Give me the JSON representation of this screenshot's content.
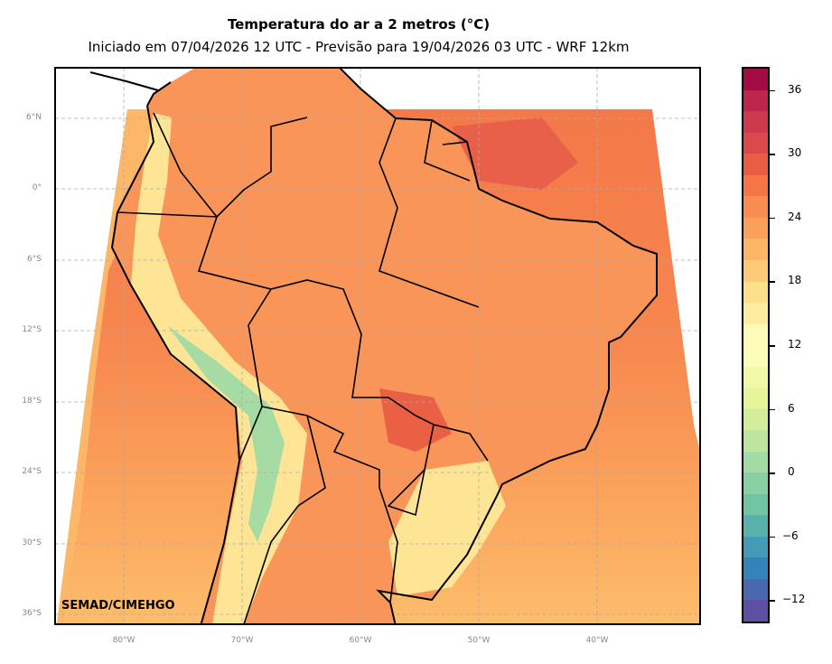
{
  "header": {
    "title": "Temperatura do ar a 2 metros (°C)",
    "subtitle": "Iniciado em 07/04/2026 12 UTC - Previsão para 19/04/2026 03 UTC - WRF 12km"
  },
  "map": {
    "credit": "SEMAD/CIMEHGO",
    "lat_labels": [
      "6°N",
      "0°",
      "6°S",
      "12°S",
      "18°S",
      "24°S",
      "30°S",
      "36°S"
    ],
    "lon_labels": [
      "80°W",
      "70°W",
      "60°W",
      "50°W",
      "40°W"
    ],
    "extent": {
      "lon_min": -85.8,
      "lon_max": -31.3,
      "lat_min": -36.8,
      "lat_max": 10.3
    }
  },
  "colorbar": {
    "min": -14,
    "max": 38,
    "step": 2,
    "ticks": [
      "−12",
      "−6",
      "0",
      "6",
      "12",
      "18",
      "24",
      "30",
      "36"
    ],
    "tick_values": [
      -12,
      -6,
      0,
      6,
      12,
      18,
      24,
      30,
      36
    ],
    "colors": [
      "#5e4fa2",
      "#4a68ae",
      "#3682ba",
      "#439bb5",
      "#58b2ab",
      "#72c5a4",
      "#89d0a4",
      "#a3dba4",
      "#bee5a0",
      "#d3ed9c",
      "#e6f598",
      "#f1f9a9",
      "#fbfdb9",
      "#fffbb8",
      "#feeda1",
      "#fee08b",
      "#fdca79",
      "#fdb567",
      "#fba05b",
      "#f88c51",
      "#f57547",
      "#e95d47",
      "#dc494c",
      "#cd3a4d",
      "#be254a",
      "#a30b44"
    ]
  }
}
